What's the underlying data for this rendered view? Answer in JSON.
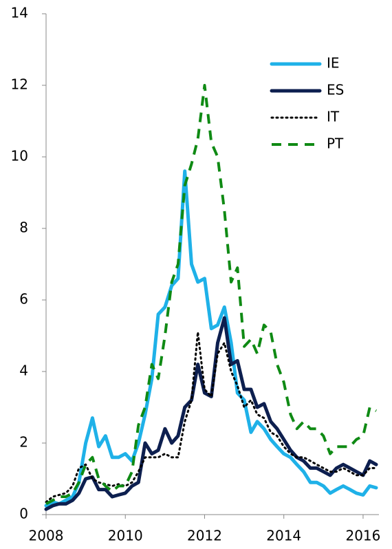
{
  "chart_data": {
    "type": "line",
    "x": [
      2008.0,
      2008.17,
      2008.33,
      2008.5,
      2008.67,
      2008.83,
      2009.0,
      2009.17,
      2009.33,
      2009.5,
      2009.67,
      2009.83,
      2010.0,
      2010.17,
      2010.33,
      2010.5,
      2010.67,
      2010.83,
      2011.0,
      2011.17,
      2011.33,
      2011.5,
      2011.67,
      2011.83,
      2012.0,
      2012.17,
      2012.33,
      2012.5,
      2012.67,
      2012.83,
      2013.0,
      2013.17,
      2013.33,
      2013.5,
      2013.67,
      2013.83,
      2014.0,
      2014.17,
      2014.33,
      2014.5,
      2014.67,
      2014.83,
      2015.0,
      2015.17,
      2015.33,
      2015.5,
      2015.67,
      2015.83,
      2016.0,
      2016.17,
      2016.33
    ],
    "series": [
      {
        "name": "IE",
        "color": "#1fb1e8",
        "style": "solid",
        "values": [
          0.25,
          0.35,
          0.3,
          0.4,
          0.5,
          0.9,
          2.0,
          2.7,
          1.9,
          2.2,
          1.6,
          1.6,
          1.7,
          1.5,
          2.0,
          2.8,
          3.8,
          5.6,
          5.8,
          6.4,
          6.6,
          9.6,
          7.0,
          6.5,
          6.6,
          5.2,
          5.3,
          5.8,
          4.8,
          3.4,
          3.2,
          2.3,
          2.6,
          2.4,
          2.1,
          1.9,
          1.7,
          1.6,
          1.4,
          1.2,
          0.9,
          0.9,
          0.8,
          0.6,
          0.7,
          0.8,
          0.7,
          0.6,
          0.55,
          0.8,
          0.75
        ]
      },
      {
        "name": "ES",
        "color": "#0d1f4f",
        "style": "solid",
        "values": [
          0.15,
          0.25,
          0.3,
          0.3,
          0.4,
          0.6,
          1.0,
          1.05,
          0.7,
          0.7,
          0.5,
          0.55,
          0.6,
          0.8,
          0.9,
          2.0,
          1.7,
          1.8,
          2.4,
          2.0,
          2.2,
          3.0,
          3.2,
          4.2,
          3.4,
          3.3,
          4.8,
          5.5,
          4.2,
          4.3,
          3.5,
          3.5,
          3.0,
          3.1,
          2.6,
          2.4,
          2.1,
          1.8,
          1.6,
          1.5,
          1.3,
          1.3,
          1.2,
          1.1,
          1.3,
          1.4,
          1.3,
          1.2,
          1.1,
          1.5,
          1.4
        ]
      },
      {
        "name": "IT",
        "color": "#000000",
        "style": "dotted",
        "values": [
          0.35,
          0.5,
          0.55,
          0.6,
          0.8,
          1.3,
          1.4,
          1.0,
          0.9,
          0.85,
          0.8,
          0.85,
          0.8,
          0.9,
          1.2,
          1.6,
          1.6,
          1.6,
          1.7,
          1.6,
          1.6,
          2.6,
          3.2,
          5.1,
          3.5,
          3.3,
          4.5,
          4.8,
          4.0,
          3.6,
          3.0,
          3.2,
          2.8,
          2.7,
          2.3,
          2.2,
          1.9,
          1.7,
          1.6,
          1.6,
          1.5,
          1.4,
          1.3,
          1.2,
          1.2,
          1.3,
          1.2,
          1.1,
          1.1,
          1.3,
          1.3
        ]
      },
      {
        "name": "PT",
        "color": "#0f8a14",
        "style": "dashed",
        "values": [
          0.3,
          0.4,
          0.5,
          0.5,
          0.6,
          0.9,
          1.4,
          1.6,
          1.0,
          0.8,
          0.65,
          0.8,
          0.8,
          1.2,
          2.5,
          3.0,
          4.2,
          3.8,
          5.0,
          6.5,
          7.0,
          9.2,
          9.8,
          10.5,
          12.0,
          10.4,
          10.0,
          8.5,
          6.5,
          6.9,
          4.7,
          4.9,
          4.5,
          5.3,
          5.1,
          4.2,
          3.7,
          2.8,
          2.4,
          2.6,
          2.4,
          2.4,
          2.2,
          1.7,
          1.9,
          1.9,
          1.9,
          2.1,
          2.2,
          3.0,
          2.9
        ]
      }
    ],
    "xlim": [
      2008,
      2016.4
    ],
    "xticks": [
      2008,
      2010,
      2012,
      2014,
      2016
    ],
    "ylim": [
      0,
      14
    ],
    "yticks": [
      0,
      2,
      4,
      6,
      8,
      10,
      12,
      14
    ],
    "grid": false,
    "legend": "upper right"
  }
}
